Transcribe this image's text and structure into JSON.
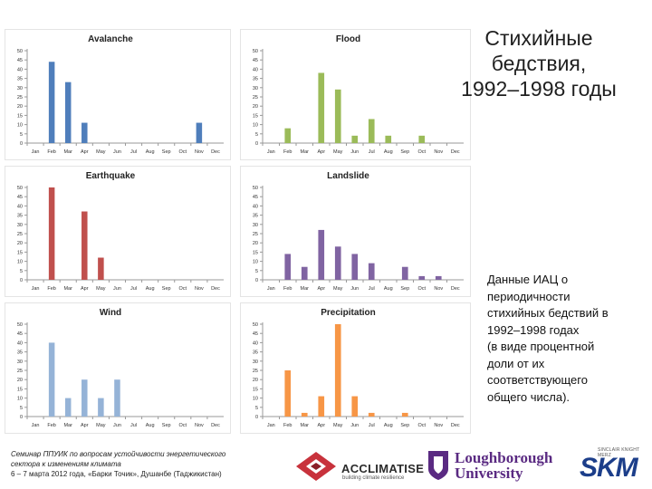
{
  "slide": {
    "title_lines": [
      "Стихийные",
      "бедствия,",
      "1992–1998 годы"
    ],
    "note_lines": [
      "Данные ИАЦ о",
      "периодичности",
      "стихийных бедствий в",
      "1992–1998 годах",
      "(в виде процентной",
      "доли от их",
      "соответствующего",
      "общего числа)."
    ]
  },
  "footer": {
    "line1": "Семинар ППУИК по вопросам устойчивости энергетического",
    "line2": "сектора к изменениям климата",
    "line3": "6 – 7 марта 2012 года, «Барки Точик», Душанбе (Таджикистан)"
  },
  "logos": {
    "acclimatise": "ACCLIMATISE",
    "acclimatise_tagline": "building climate resilience",
    "loughborough_line1": "Loughborough",
    "loughborough_line2": "University",
    "skm_tagline": "SINCLAIR KNIGHT MERZ",
    "skm": "SKM"
  },
  "colors": {
    "avalanche": "#4f7ebb",
    "flood": "#9bbb59",
    "earthquake": "#c0504d",
    "landslide": "#8064a2",
    "wind": "#95b3d7",
    "precipitation": "#f79646"
  },
  "chart_data": [
    {
      "type": "bar",
      "title": "Avalanche",
      "color_key": "avalanche",
      "categories": [
        "Jan",
        "Feb",
        "Mar",
        "Apr",
        "May",
        "Jun",
        "Jul",
        "Aug",
        "Sep",
        "Oct",
        "Nov",
        "Dec"
      ],
      "values": [
        0,
        44,
        33,
        11,
        0,
        0,
        0,
        0,
        0,
        0,
        11,
        0
      ],
      "yticks": [
        0,
        5,
        10,
        15,
        20,
        25,
        30,
        35,
        40,
        45,
        50
      ],
      "ylim": [
        0,
        50
      ],
      "grid": false
    },
    {
      "type": "bar",
      "title": "Flood",
      "color_key": "flood",
      "categories": [
        "Jan",
        "Feb",
        "Mar",
        "Apr",
        "May",
        "Jun",
        "Jul",
        "Aug",
        "Sep",
        "Oct",
        "Nov",
        "Dec"
      ],
      "values": [
        0,
        8,
        0,
        38,
        29,
        4,
        13,
        4,
        0,
        4,
        0,
        0
      ],
      "yticks": [
        0,
        5,
        10,
        15,
        20,
        25,
        30,
        35,
        40,
        45,
        50
      ],
      "ylim": [
        0,
        50
      ],
      "grid": false
    },
    {
      "type": "bar",
      "title": "Earthquake",
      "color_key": "earthquake",
      "categories": [
        "Jan",
        "Feb",
        "Mar",
        "Apr",
        "May",
        "Jun",
        "Jul",
        "Aug",
        "Sep",
        "Oct",
        "Nov",
        "Dec"
      ],
      "values": [
        0,
        50,
        0,
        37,
        12,
        0,
        0,
        0,
        0,
        0,
        0,
        0
      ],
      "yticks": [
        0,
        5,
        10,
        15,
        20,
        25,
        30,
        35,
        40,
        45,
        50
      ],
      "ylim": [
        0,
        50
      ],
      "grid": false
    },
    {
      "type": "bar",
      "title": "Landslide",
      "color_key": "landslide",
      "categories": [
        "Jan",
        "Feb",
        "Mar",
        "Apr",
        "May",
        "Jun",
        "Jul",
        "Aug",
        "Sep",
        "Oct",
        "Nov",
        "Dec"
      ],
      "values": [
        0,
        14,
        7,
        27,
        18,
        14,
        9,
        0,
        7,
        2,
        2,
        0
      ],
      "yticks": [
        0,
        5,
        10,
        15,
        20,
        25,
        30,
        35,
        40,
        45,
        50
      ],
      "ylim": [
        0,
        50
      ],
      "grid": false
    },
    {
      "type": "bar",
      "title": "Wind",
      "color_key": "wind",
      "categories": [
        "Jan",
        "Feb",
        "Mar",
        "Apr",
        "May",
        "Jun",
        "Jul",
        "Aug",
        "Sep",
        "Oct",
        "Nov",
        "Dec"
      ],
      "values": [
        0,
        40,
        10,
        20,
        10,
        20,
        0,
        0,
        0,
        0,
        0,
        0
      ],
      "yticks": [
        0,
        5,
        10,
        15,
        20,
        25,
        30,
        35,
        40,
        45,
        50
      ],
      "ylim": [
        0,
        50
      ],
      "grid": false
    },
    {
      "type": "bar",
      "title": "Precipitation",
      "color_key": "precipitation",
      "categories": [
        "Jan",
        "Feb",
        "Mar",
        "Apr",
        "May",
        "Jun",
        "Jul",
        "Aug",
        "Sep",
        "Oct",
        "Nov",
        "Dec"
      ],
      "values": [
        0,
        25,
        2,
        11,
        50,
        11,
        2,
        0,
        2,
        0,
        0,
        0
      ],
      "yticks": [
        0,
        5,
        10,
        15,
        20,
        25,
        30,
        35,
        40,
        45,
        50
      ],
      "ylim": [
        0,
        50
      ],
      "grid": false
    }
  ]
}
